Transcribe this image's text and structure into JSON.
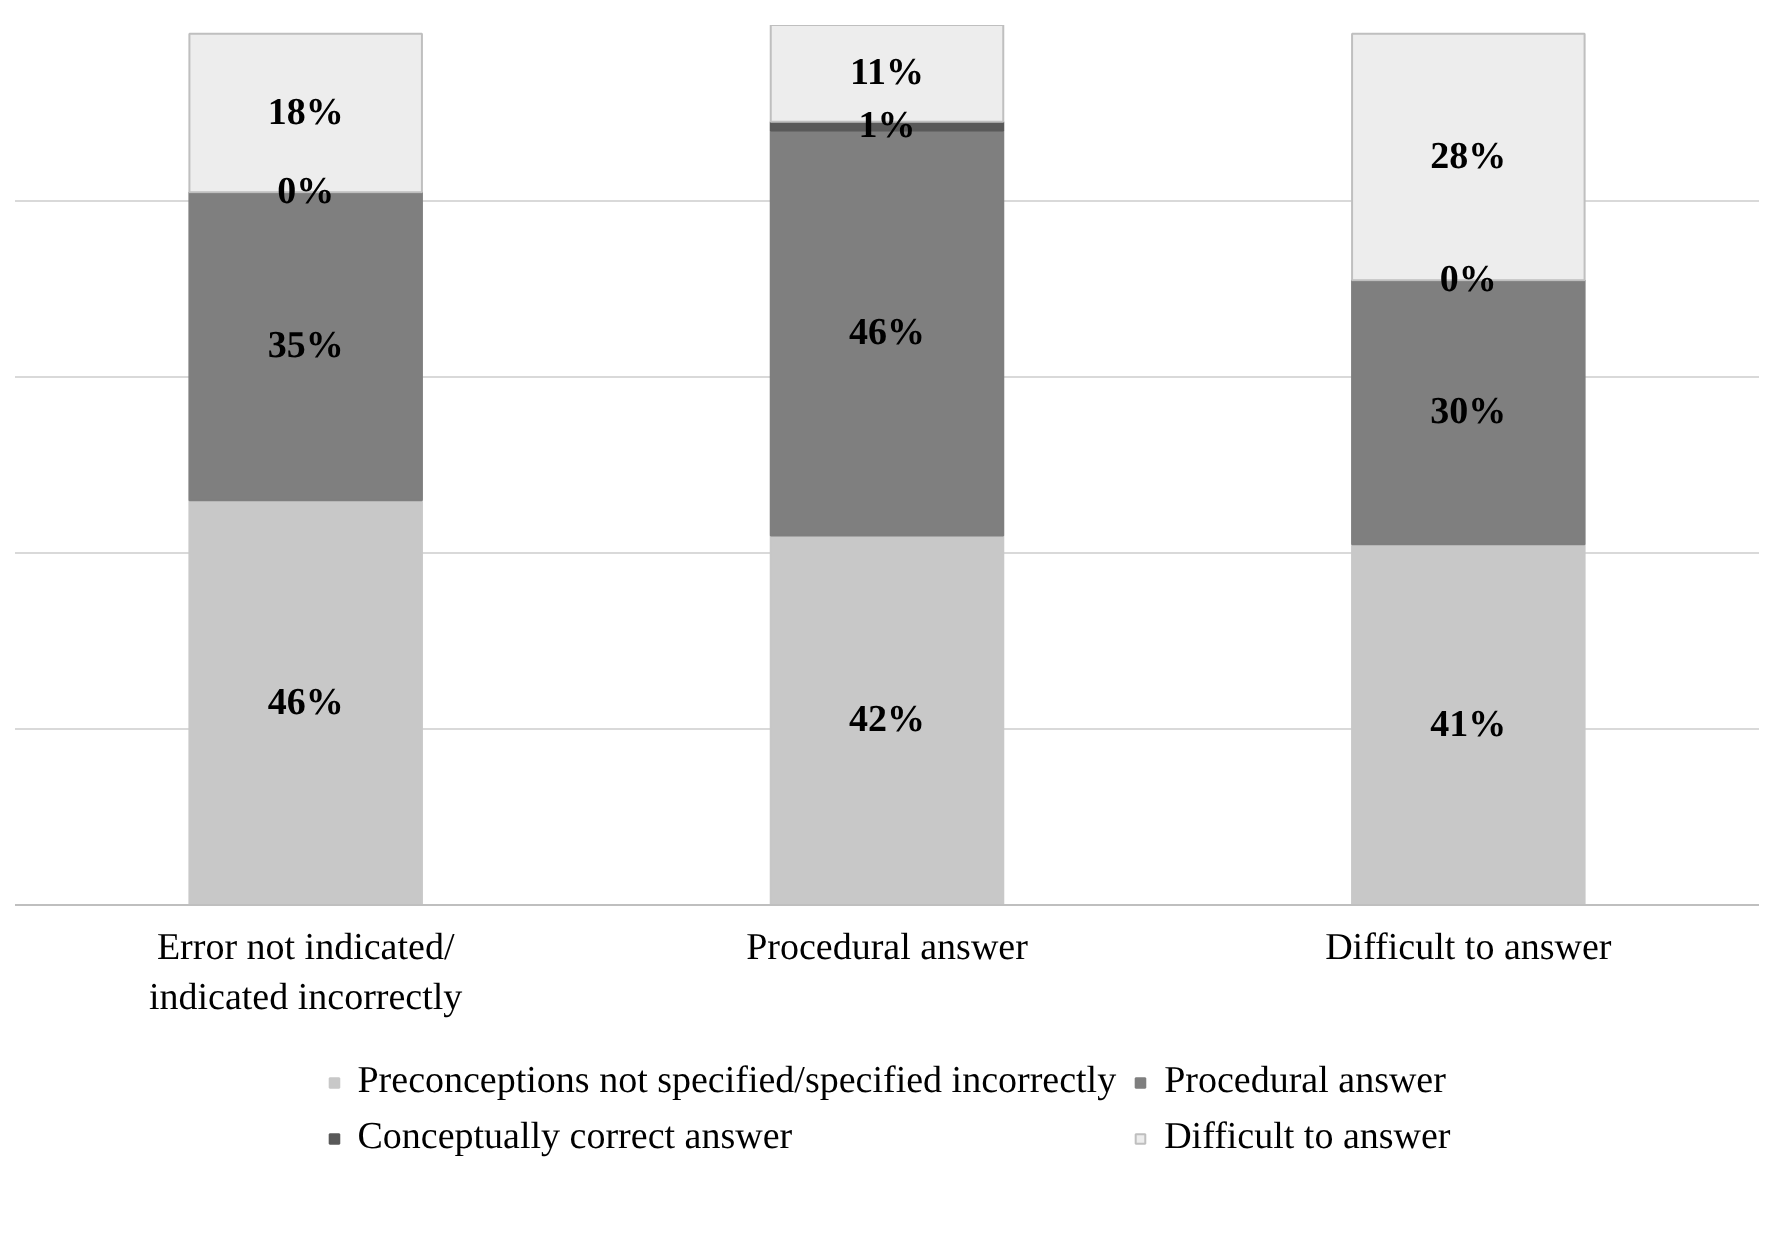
{
  "chart_data": {
    "type": "bar",
    "stacked": true,
    "categories": [
      "Error not indicated/\nindicated incorrectly",
      "Procedural answer",
      "Difficult to answer"
    ],
    "ylim": [
      0,
      100
    ],
    "yticks": [
      {
        "value": 0,
        "label": null
      },
      {
        "value": 20,
        "label": null
      },
      {
        "value": 40,
        "label": null
      },
      {
        "value": 60,
        "label": null
      },
      {
        "value": 80,
        "label": null
      }
    ],
    "grid": "y",
    "legend": "bottom",
    "tick_labels": "x",
    "series": [
      {
        "name": "Preconceptions not specified/specified incorrectly",
        "color": "#c8c8c8",
        "values": [
          46,
          42,
          41
        ],
        "value_labels": [
          "46%",
          "42%",
          "41%"
        ]
      },
      {
        "name": "Procedural answer",
        "color": "#7f7f7f",
        "values": [
          35,
          46,
          30
        ],
        "value_labels": [
          "35%",
          "46%",
          "30%"
        ]
      },
      {
        "name": "Conceptually correct answer",
        "color": "#595959",
        "values": [
          0,
          1,
          0
        ],
        "value_labels": [
          "0%",
          "1%",
          "0%"
        ]
      },
      {
        "name": "Difficult to answer",
        "color": "#ededed",
        "values": [
          18,
          11,
          28
        ],
        "value_labels": [
          "18%",
          "11%",
          "28%"
        ]
      }
    ]
  }
}
